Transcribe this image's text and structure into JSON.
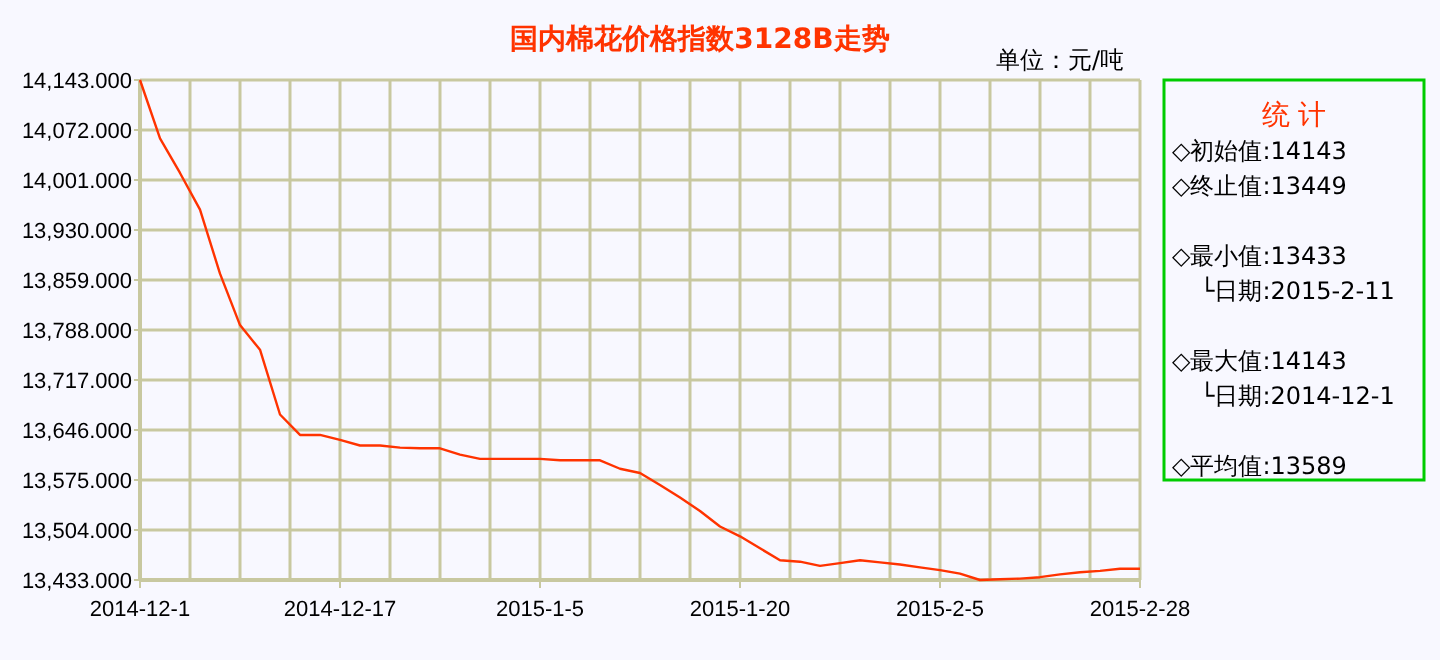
{
  "chart_data": {
    "type": "line",
    "title": "国内棉花价格指数3128B走势",
    "ylabel": "单位：元/吨",
    "categories": [
      "2014-12-1",
      null,
      null,
      null,
      null,
      null,
      null,
      null,
      null,
      null,
      "2014-12-17",
      null,
      null,
      null,
      null,
      null,
      null,
      null,
      null,
      null,
      "2015-1-5",
      null,
      null,
      null,
      null,
      null,
      null,
      null,
      null,
      null,
      "2015-1-20",
      null,
      null,
      null,
      null,
      null,
      null,
      null,
      null,
      null,
      "2015-2-5",
      null,
      null,
      null,
      null,
      null,
      null,
      null,
      null,
      null,
      "2015-2-28"
    ],
    "ylim": [
      13433,
      14143
    ],
    "yticks": [
      {
        "value": 13433,
        "label": "13,433.000"
      },
      {
        "value": 13504,
        "label": "13,504.000"
      },
      {
        "value": 13575,
        "label": "13,575.000"
      },
      {
        "value": 13646,
        "label": "13,646.000"
      },
      {
        "value": 13717,
        "label": "13,717.000"
      },
      {
        "value": 13788,
        "label": "13,788.000"
      },
      {
        "value": 13859,
        "label": "13,859.000"
      },
      {
        "value": 13930,
        "label": "13,930.000"
      },
      {
        "value": 14001,
        "label": "14,001.000"
      },
      {
        "value": 14072,
        "label": "14,072.000"
      },
      {
        "value": 14143,
        "label": "14,143.000"
      }
    ],
    "grid": true,
    "marker": "none",
    "line_style": "solid",
    "series": [
      {
        "color": "#ff3300",
        "values": [
          14143,
          14060,
          14011,
          13959,
          13868,
          13795,
          13760,
          13668,
          13639,
          13639,
          13632,
          13624,
          13624,
          13621,
          13620,
          13620,
          13611,
          13605,
          13605,
          13605,
          13605,
          13603,
          13603,
          13603,
          13591,
          13585,
          13568,
          13550,
          13531,
          13509,
          13495,
          13478,
          13461,
          13459,
          13453,
          13457,
          13461,
          13458,
          13455,
          13451,
          13447,
          13442,
          13433,
          13434,
          13435,
          13437,
          13441,
          13444,
          13446,
          13449,
          13449
        ]
      }
    ],
    "annotations": [
      "统  计",
      "◇初始值:14143",
      "◇终止值:13449",
      "◇最小值:13433",
      "└日期:2015-2-11",
      "◇最大值:14143",
      "└日期:2014-12-1",
      "◇平均值:13589"
    ]
  }
}
